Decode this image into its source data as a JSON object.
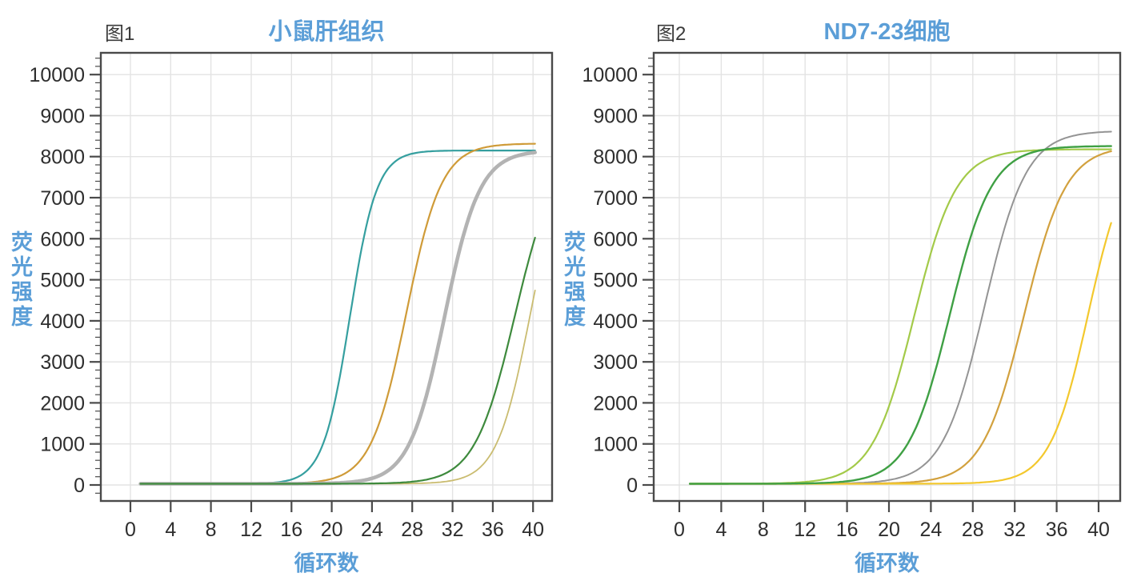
{
  "accent_color": "#5b9ed7",
  "text_color": "#2e2e2e",
  "grid_color": "#e3e3e3",
  "chart_data": [
    {
      "type": "line",
      "tag": "图1",
      "title": "小鼠肝组织",
      "xlabel": "循环数",
      "ylabel": "荧光强度",
      "xticks": [
        0,
        4,
        8,
        12,
        16,
        20,
        24,
        28,
        32,
        36,
        40
      ],
      "yticks": [
        0,
        1000,
        2000,
        3000,
        4000,
        5000,
        6000,
        7000,
        8000,
        9000,
        10000
      ],
      "y_minor_step": 200,
      "xlim": [
        0,
        42
      ],
      "ylim": [
        -400,
        10550
      ],
      "grid": true,
      "legend_position": "none",
      "curve_model": "logistic: value = baseline + plateau / (1 + exp(-steepness*(cycle - midpoint_cycle)))",
      "series": [
        {
          "name": "teal",
          "color": "#359f9f",
          "width": 2.2,
          "baseline": 30,
          "plateau": 8120,
          "midpoint_cycle": 21.8,
          "steepness": 0.75,
          "x_start": 1,
          "x_end": 40.3,
          "end_value": 8150
        },
        {
          "name": "orange",
          "color": "#cf9b38",
          "width": 2.2,
          "baseline": 30,
          "plateau": 8290,
          "midpoint_cycle": 27.4,
          "steepness": 0.57,
          "x_start": 1,
          "x_end": 40.3,
          "end_value": 8300
        },
        {
          "name": "gray-thick",
          "color": "#b3b3b3",
          "width": 4.6,
          "baseline": 30,
          "plateau": 8120,
          "midpoint_cycle": 31.2,
          "steepness": 0.57,
          "x_start": 1,
          "x_end": 40.3,
          "end_value": 8080
        },
        {
          "name": "khaki",
          "color": "#cabc70",
          "width": 1.8,
          "baseline": 30,
          "plateau": 8200,
          "midpoint_cycle": 39.7,
          "steepness": 0.6,
          "x_start": 1,
          "x_end": 40.3,
          "end_value": 5050
        },
        {
          "name": "green",
          "color": "#3e8a3d",
          "width": 2.2,
          "baseline": 30,
          "plateau": 8200,
          "midpoint_cycle": 38.2,
          "steepness": 0.5,
          "x_start": 1,
          "x_end": 40.3,
          "end_value": 6000
        }
      ]
    },
    {
      "type": "line",
      "tag": "图2",
      "title": "ND7-23细胞",
      "xlabel": "循环数",
      "ylabel": "荧光强度",
      "xticks": [
        0,
        4,
        8,
        12,
        16,
        20,
        24,
        28,
        32,
        36,
        40
      ],
      "yticks": [
        0,
        1000,
        2000,
        3000,
        4000,
        5000,
        6000,
        7000,
        8000,
        9000,
        10000
      ],
      "y_minor_step": 200,
      "xlim": [
        0,
        42
      ],
      "ylim": [
        -400,
        10550
      ],
      "grid": true,
      "legend_position": "none",
      "curve_model": "logistic: value = baseline + plateau / (1 + exp(-steepness*(cycle - midpoint_cycle)))",
      "series": [
        {
          "name": "lime",
          "color": "#a3ca49",
          "width": 2.2,
          "baseline": 30,
          "plateau": 8150,
          "midpoint_cycle": 22.4,
          "steepness": 0.5,
          "x_start": 1,
          "x_end": 41.3,
          "end_value": 8180
        },
        {
          "name": "orange",
          "color": "#d2a13e",
          "width": 2.2,
          "baseline": 30,
          "plateau": 8230,
          "midpoint_cycle": 32.9,
          "steepness": 0.5,
          "x_start": 1,
          "x_end": 41.3,
          "end_value": 8110
        },
        {
          "name": "gray",
          "color": "#949494",
          "width": 2.0,
          "baseline": 30,
          "plateau": 8600,
          "midpoint_cycle": 29.1,
          "steepness": 0.5,
          "x_start": 1,
          "x_end": 41.3,
          "end_value": 8580
        },
        {
          "name": "yellow",
          "color": "#f3c82d",
          "width": 2.2,
          "baseline": 30,
          "plateau": 8250,
          "midpoint_cycle": 39.0,
          "steepness": 0.55,
          "x_start": 1,
          "x_end": 41.3,
          "end_value": 6450
        },
        {
          "name": "green",
          "color": "#3fa044",
          "width": 2.4,
          "baseline": 30,
          "plateau": 8230,
          "midpoint_cycle": 25.8,
          "steepness": 0.5,
          "x_start": 1,
          "x_end": 41.3,
          "end_value": 8260
        }
      ]
    }
  ]
}
